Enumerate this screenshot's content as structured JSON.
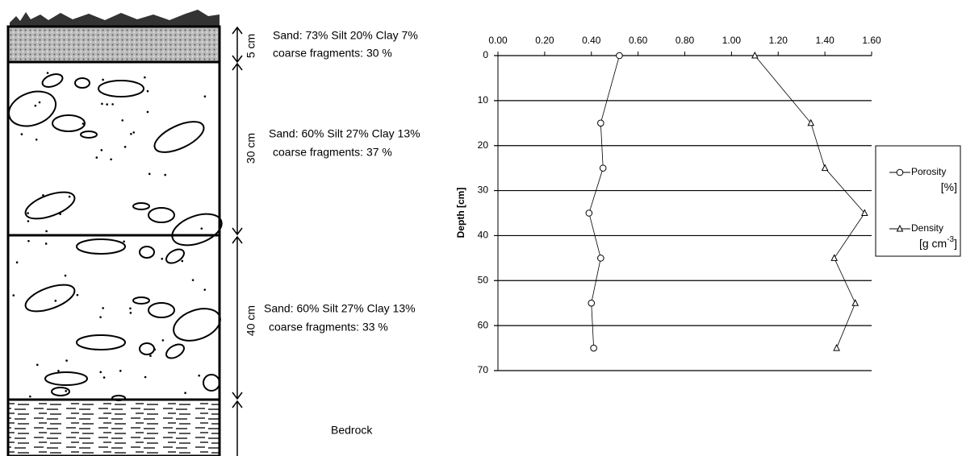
{
  "profile": {
    "layers": [
      {
        "thickness": "5 cm",
        "texture": "Sand: 73% Silt 20% Clay 7%",
        "fragments": "coarse fragments: 30 %"
      },
      {
        "thickness": "30 cm",
        "texture": "Sand: 60% Silt 27% Clay 13%",
        "fragments": "coarse fragments: 37 %"
      },
      {
        "thickness": "40 cm",
        "texture": "Sand: 60% Silt 27% Clay 13%",
        "fragments": "coarse fragments: 33 %"
      }
    ],
    "bedrock": "Bedrock"
  },
  "chart_data": {
    "type": "line",
    "ylabel": "Depth [cm]",
    "depth": [
      0,
      15,
      25,
      35,
      45,
      55,
      65
    ],
    "series": [
      {
        "name": "Porosity",
        "unit": "[%]",
        "marker": "circle",
        "color": "#000000",
        "values": [
          0.52,
          0.44,
          0.45,
          0.39,
          0.44,
          0.4,
          0.41
        ]
      },
      {
        "name": "Density",
        "unit": "[g cm",
        "unit_sup": "-3",
        "unit_end": "]",
        "marker": "triangle",
        "color": "#000000",
        "values": [
          1.1,
          1.34,
          1.4,
          1.57,
          1.44,
          1.53,
          1.45
        ]
      }
    ],
    "xlim": [
      0,
      1.6
    ],
    "xticks": [
      {
        "value": 0,
        "label": "0.00"
      },
      {
        "value": 0.2,
        "label": "0.20"
      },
      {
        "value": 0.4,
        "label": "0.40"
      },
      {
        "value": 0.6,
        "label": "0.60"
      },
      {
        "value": 0.8,
        "label": "0.80"
      },
      {
        "value": 1,
        "label": "1.00"
      },
      {
        "value": 1.2,
        "label": "1.20"
      },
      {
        "value": 1.4,
        "label": "1.40"
      },
      {
        "value": 1.6,
        "label": "1.60"
      }
    ],
    "ylim": [
      0,
      70
    ],
    "yticks": [
      0,
      10,
      20,
      30,
      40,
      50,
      60,
      70
    ],
    "y_inverted": true,
    "grid": true
  }
}
